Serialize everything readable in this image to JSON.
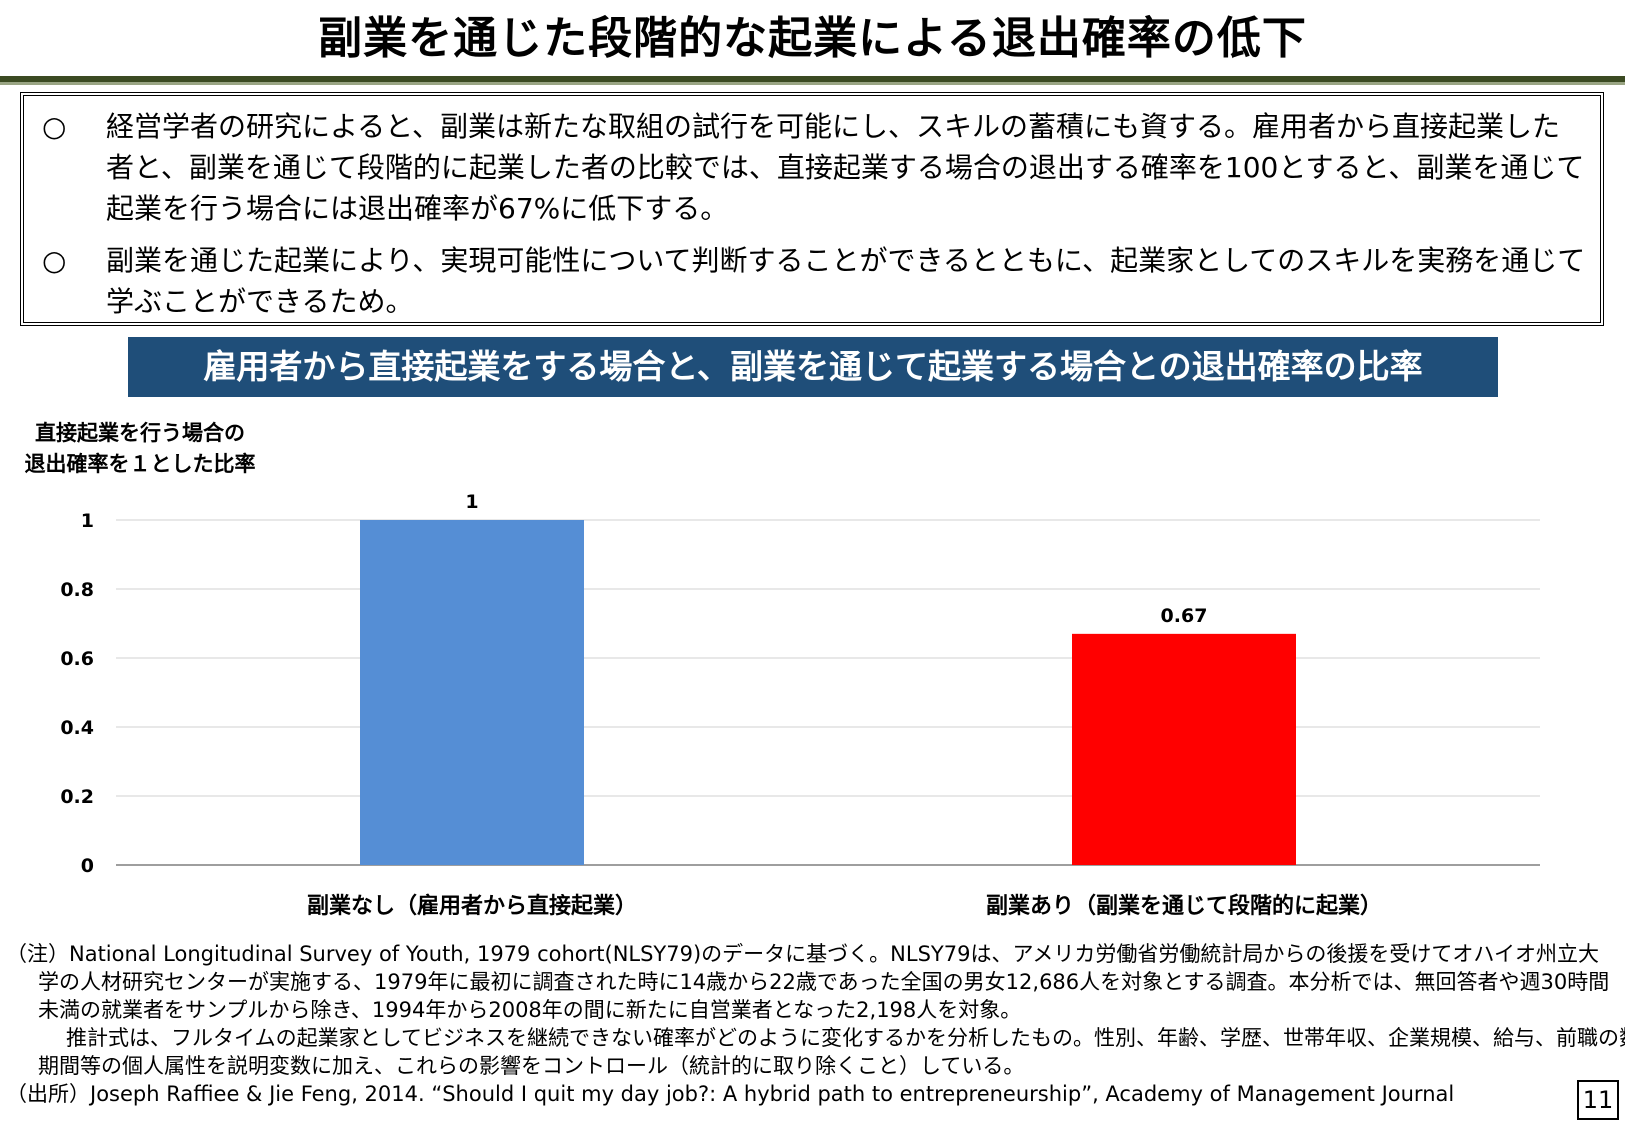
{
  "title": "副業を通じた段階的な起業による退出確率の低下",
  "summary": {
    "bullet_mark": "○",
    "items": [
      "経営学者の研究によると、副業は新たな取組の試行を可能にし、スキルの蓄積にも資する。雇用者から直接起業した者と、副業を通じて段階的に起業した者の比較では、直接起業する場合の退出する確率を100とすると、副業を通じて起業を行う場合には退出確率が67%に低下する。",
      "副業を通じた起業により、実現可能性について判断することができるとともに、起業家としてのスキルを実務を通じて学ぶことができるため。"
    ]
  },
  "section_banner": "雇用者から直接起業をする場合と、副業を通じて起業する場合との退出確率の比率",
  "chart_data": {
    "type": "bar",
    "title": "雇用者から直接起業をする場合と、副業を通じて起業する場合との退出確率の比率",
    "ylabel_lines": [
      "直接起業を行う場合の",
      "退出確率を１とした比率"
    ],
    "xlabel": "",
    "categories": [
      "副業なし（雇用者から直接起業）",
      "副業あり（副業を通じて段階的に起業）"
    ],
    "values": [
      1,
      0.67
    ],
    "data_labels": [
      "1",
      "0.67"
    ],
    "bar_colors": [
      "#558ed5",
      "#ff0000"
    ],
    "ylim": [
      0,
      1
    ],
    "yticks": [
      0,
      0.2,
      0.4,
      0.6,
      0.8,
      1
    ],
    "ytick_labels": [
      "0",
      "0.2",
      "0.4",
      "0.6",
      "0.8",
      "1"
    ],
    "grid": true,
    "legend": "none"
  },
  "notes": {
    "line1": "（注）National Longitudinal Survey of Youth, 1979 cohort(NLSY79)のデータに基づく。NLSY79は、アメリカ労働省労働統計局からの後援を受けてオハイオ州立大",
    "line2": "学の人材研究センターが実施する、1979年に最初に調査された時に14歳から22歳であった全国の男女12,686人を対象とする調査。本分析では、無回答者や週30時間",
    "line3": "未満の就業者をサンプルから除き、1994年から2008年の間に新たに自営業者となった2,198人を対象。",
    "line4": "推計式は、フルタイムの起業家としてビジネスを継続できない確率がどのように変化するかを分析したもの。性別、年齢、学歴、世帯年収、企業規模、給与、前職の数、在職",
    "line5": "期間等の個人属性を説明変数に加え、これらの影響をコントロール（統計的に取り除くこと）している。",
    "source": "（出所）Joseph Raffiee & Jie Feng, 2014. “Should I quit my day job?: A hybrid path to entrepreneurship”, Academy of Management Journal"
  },
  "page_number": "11"
}
